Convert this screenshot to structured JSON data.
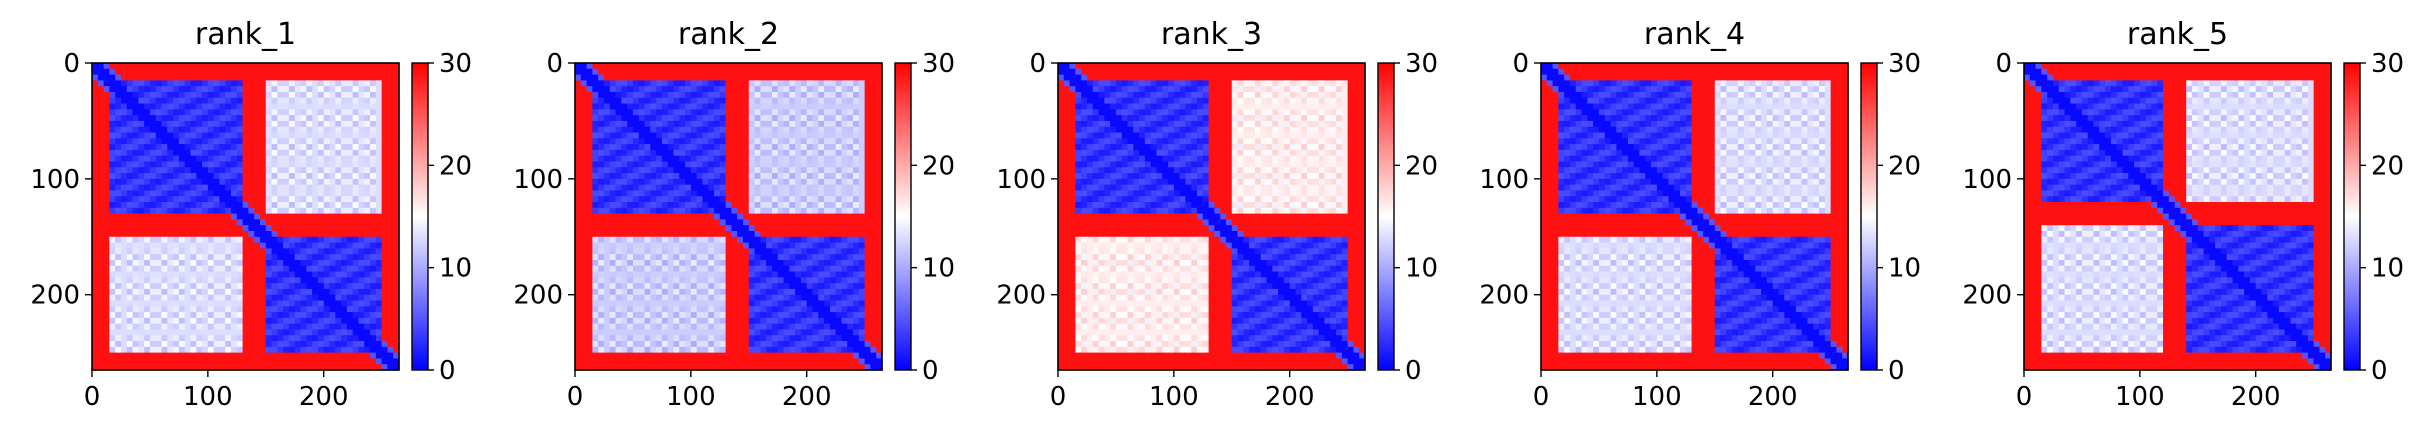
{
  "chart_data": [
    {
      "type": "heatmap",
      "title": "rank_1",
      "xlim": [
        0,
        265
      ],
      "ylim": [
        265,
        0
      ],
      "x_ticks": [
        0,
        100,
        200
      ],
      "y_ticks": [
        0,
        100,
        200
      ],
      "colorbar": {
        "range": [
          0,
          30
        ],
        "ticks": [
          0,
          10,
          20,
          30
        ],
        "colormap": "bwr"
      },
      "domains": [
        [
          15,
          132
        ],
        [
          148,
          252
        ]
      ],
      "linker": [
        133,
        147
      ],
      "intra_domain_value": 3,
      "inter_domain_value": 13,
      "terminal_value": 29
    },
    {
      "type": "heatmap",
      "title": "rank_2",
      "xlim": [
        0,
        265
      ],
      "ylim": [
        265,
        0
      ],
      "x_ticks": [
        0,
        100,
        200
      ],
      "y_ticks": [
        0,
        100,
        200
      ],
      "colorbar": {
        "range": [
          0,
          30
        ],
        "ticks": [
          0,
          10,
          20,
          30
        ],
        "colormap": "bwr"
      },
      "domains": [
        [
          15,
          132
        ],
        [
          148,
          252
        ]
      ],
      "linker": [
        133,
        147
      ],
      "intra_domain_value": 3,
      "inter_domain_value": 12,
      "terminal_value": 29
    },
    {
      "type": "heatmap",
      "title": "rank_3",
      "xlim": [
        0,
        265
      ],
      "ylim": [
        265,
        0
      ],
      "x_ticks": [
        0,
        100,
        200
      ],
      "y_ticks": [
        0,
        100,
        200
      ],
      "colorbar": {
        "range": [
          0,
          30
        ],
        "ticks": [
          0,
          10,
          20,
          30
        ],
        "colormap": "bwr"
      },
      "domains": [
        [
          15,
          132
        ],
        [
          148,
          252
        ]
      ],
      "linker": [
        133,
        147
      ],
      "intra_domain_value": 3,
      "inter_domain_value": 16,
      "terminal_value": 29
    },
    {
      "type": "heatmap",
      "title": "rank_4",
      "xlim": [
        0,
        265
      ],
      "ylim": [
        265,
        0
      ],
      "x_ticks": [
        0,
        100,
        200
      ],
      "y_ticks": [
        0,
        100,
        200
      ],
      "colorbar": {
        "range": [
          0,
          30
        ],
        "ticks": [
          0,
          10,
          20,
          30
        ],
        "colormap": "bwr"
      },
      "domains": [
        [
          15,
          132
        ],
        [
          148,
          252
        ]
      ],
      "linker": [
        133,
        147
      ],
      "intra_domain_value": 3,
      "inter_domain_value": 13,
      "terminal_value": 29
    },
    {
      "type": "heatmap",
      "title": "rank_5",
      "xlim": [
        0,
        265
      ],
      "ylim": [
        265,
        0
      ],
      "x_ticks": [
        0,
        100,
        200
      ],
      "y_ticks": [
        0,
        100,
        200
      ],
      "colorbar": {
        "range": [
          0,
          30
        ],
        "ticks": [
          0,
          10,
          20,
          30
        ],
        "colormap": "bwr"
      },
      "domains": [
        [
          15,
          118
        ],
        [
          140,
          252
        ]
      ],
      "linker": [
        119,
        139
      ],
      "intra_domain_value": 3,
      "inter_domain_value": 13,
      "terminal_value": 29
    }
  ],
  "colors": {
    "low": "#0000ff",
    "mid": "#ffffff",
    "high": "#ff0000",
    "axis": "#000000"
  }
}
